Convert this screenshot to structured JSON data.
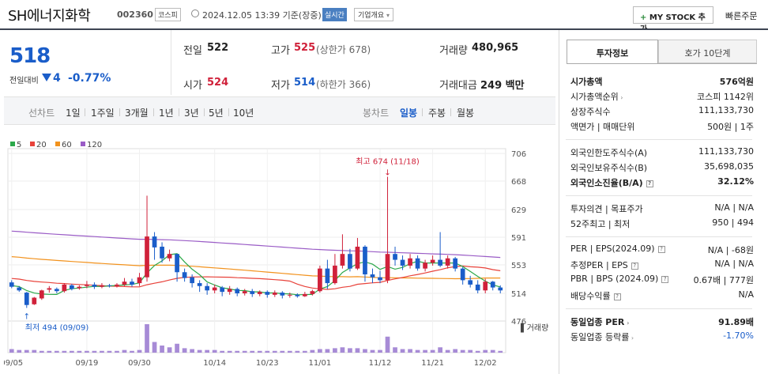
{
  "header": {
    "stock_name": "SH에너지화학",
    "stock_code": "002360",
    "market_badge": "코스피",
    "datetime": "2024.12.05 13:39 기준(장중)",
    "realtime_badge": "실시간",
    "overview_dropdown": "기업개요",
    "mystock_button": "MY STOCK 추가",
    "quick_order": "빠른주문"
  },
  "quote": {
    "current_price": "518",
    "change_label": "전일대비",
    "change_value": "4",
    "change_pct": "-0.77%",
    "prev_close_label": "전일",
    "prev_close": "522",
    "open_label": "시가",
    "open": "524",
    "high_label": "고가",
    "high": "525",
    "upper_limit": "(상한가 678)",
    "low_label": "저가",
    "low": "514",
    "lower_limit": "(하한가 366)",
    "volume_label": "거래량",
    "volume": "480,965",
    "value_label": "거래대금",
    "value": "249 백만"
  },
  "chart_tabs": {
    "line_label": "선차트",
    "periods": [
      "1일",
      "1주일",
      "3개월",
      "1년",
      "3년",
      "5년",
      "10년"
    ],
    "candle_label": "봉차트",
    "candle_periods": [
      "일봉",
      "주봉",
      "월봉"
    ],
    "active_candle": "일봉"
  },
  "colors": {
    "up": "#d0213a",
    "down": "#1a5dc9",
    "ma5": "#2ba84a",
    "ma20": "#e8423a",
    "ma60": "#f2921d",
    "ma120": "#9a5cc6",
    "volume": "#a78bd6"
  },
  "chart_data": {
    "type": "candlestick",
    "legend": [
      "5",
      "20",
      "60",
      "120"
    ],
    "y_ticks": [
      706,
      668,
      629,
      591,
      553,
      514,
      476
    ],
    "ylim": [
      476,
      706
    ],
    "x_ticks": [
      "09/05",
      "09/19",
      "09/30",
      "10/14",
      "10/23",
      "11/01",
      "11/12",
      "11/21",
      "12/02"
    ],
    "x_tick_index": [
      0,
      10,
      17,
      27,
      34,
      41,
      49,
      56,
      63
    ],
    "max_annotation": "최고 674 (11/18)",
    "min_annotation": "최저 494 (09/09)",
    "volume_label": "거래량",
    "candles": [
      [
        529,
        523,
        532,
        521
      ],
      [
        522,
        518,
        524,
        516
      ],
      [
        515,
        498,
        516,
        494
      ],
      [
        499,
        508,
        509,
        498
      ],
      [
        507,
        518,
        519,
        505
      ],
      [
        519,
        521,
        524,
        515
      ],
      [
        520,
        517,
        522,
        514
      ],
      [
        517,
        526,
        528,
        515
      ],
      [
        525,
        520,
        527,
        518
      ],
      [
        521,
        523,
        525,
        519
      ],
      [
        524,
        526,
        531,
        521
      ],
      [
        526,
        523,
        529,
        520
      ],
      [
        523,
        525,
        528,
        521
      ],
      [
        525,
        524,
        527,
        522
      ],
      [
        524,
        526,
        528,
        522
      ],
      [
        526,
        530,
        535,
        524
      ],
      [
        530,
        526,
        534,
        523
      ],
      [
        528,
        536,
        542,
        524
      ],
      [
        536,
        592,
        648,
        530
      ],
      [
        592,
        577,
        598,
        560
      ],
      [
        578,
        562,
        584,
        556
      ],
      [
        562,
        568,
        574,
        558
      ],
      [
        568,
        543,
        568,
        530
      ],
      [
        543,
        535,
        548,
        530
      ],
      [
        536,
        528,
        540,
        522
      ],
      [
        528,
        524,
        532,
        516
      ],
      [
        524,
        518,
        528,
        512
      ],
      [
        518,
        522,
        526,
        514
      ],
      [
        522,
        516,
        524,
        510
      ],
      [
        516,
        520,
        524,
        512
      ],
      [
        520,
        514,
        522,
        510
      ],
      [
        514,
        517,
        520,
        511
      ],
      [
        517,
        513,
        520,
        509
      ],
      [
        513,
        516,
        518,
        510
      ],
      [
        516,
        512,
        518,
        508
      ],
      [
        512,
        515,
        518,
        509
      ],
      [
        515,
        511,
        517,
        507
      ],
      [
        511,
        512,
        515,
        508
      ],
      [
        512,
        510,
        514,
        508
      ],
      [
        510,
        513,
        516,
        509
      ],
      [
        513,
        517,
        519,
        511
      ],
      [
        517,
        548,
        552,
        515
      ],
      [
        548,
        528,
        560,
        520
      ],
      [
        528,
        552,
        568,
        526
      ],
      [
        552,
        568,
        595,
        548
      ],
      [
        568,
        548,
        575,
        544
      ],
      [
        548,
        578,
        590,
        546
      ],
      [
        578,
        540,
        580,
        530
      ],
      [
        540,
        536,
        548,
        528
      ],
      [
        536,
        532,
        545,
        528
      ],
      [
        532,
        568,
        674,
        528
      ],
      [
        568,
        560,
        578,
        552
      ],
      [
        560,
        552,
        566,
        546
      ],
      [
        552,
        562,
        568,
        548
      ],
      [
        562,
        548,
        566,
        545
      ],
      [
        548,
        556,
        560,
        544
      ],
      [
        556,
        560,
        566,
        552
      ],
      [
        560,
        552,
        598,
        550
      ],
      [
        552,
        562,
        566,
        548
      ],
      [
        562,
        548,
        564,
        544
      ],
      [
        548,
        532,
        550,
        526
      ],
      [
        532,
        526,
        538,
        522
      ],
      [
        526,
        518,
        532,
        514
      ],
      [
        518,
        530,
        534,
        514
      ],
      [
        530,
        522,
        531,
        518
      ],
      [
        522,
        518,
        525,
        514
      ]
    ],
    "volumes": [
      4,
      3,
      3,
      3,
      2,
      2,
      2,
      2,
      2,
      2,
      2,
      2,
      2,
      2,
      2,
      3,
      2,
      3,
      32,
      12,
      8,
      6,
      10,
      5,
      4,
      3,
      3,
      3,
      2,
      2,
      2,
      2,
      2,
      2,
      2,
      2,
      2,
      2,
      2,
      2,
      3,
      4,
      4,
      5,
      6,
      5,
      5,
      4,
      3,
      3,
      18,
      6,
      4,
      4,
      3,
      3,
      3,
      6,
      3,
      4,
      3,
      3,
      2,
      3,
      3,
      2
    ]
  },
  "info_panel": {
    "tabs": [
      "투자정보",
      "호가 10단계"
    ],
    "active_tab": "투자정보",
    "rows": [
      {
        "label": "시가총액",
        "value": "576억원",
        "bold": true
      },
      {
        "label": "시가총액순위",
        "value": "코스피 1142위",
        "chev": true
      },
      {
        "label": "상장주식수",
        "value": "111,133,730"
      },
      {
        "label": "액면가 | 매매단위",
        "value": "500원 | 1주"
      },
      {
        "label": "외국인한도주식수(A)",
        "value": "111,133,730"
      },
      {
        "label": "외국인보유주식수(B)",
        "value": "35,698,035"
      },
      {
        "label": "외국인소진율(B/A)",
        "value": "32.12%",
        "bold": true,
        "q": true
      },
      {
        "label": "투자의견 | 목표주가",
        "value": "N/A | N/A"
      },
      {
        "label": "52주최고 | 최저",
        "value": "950 | 494"
      },
      {
        "label": "PER | EPS(2024.09)",
        "value": "N/A | -68원",
        "q": true
      },
      {
        "label": "추정PER | EPS",
        "value": "N/A | N/A",
        "q": true
      },
      {
        "label": "PBR | BPS (2024.09)",
        "value": "0.67배 | 777원",
        "q": true
      },
      {
        "label": "배당수익률",
        "value": "N/A",
        "q": true
      },
      {
        "label": "동일업종 PER",
        "value": "91.89배",
        "bold": true,
        "chev": true
      },
      {
        "label": "동일업종 등락률",
        "value": "-1.70%",
        "blue": true,
        "chev": true
      }
    ]
  }
}
